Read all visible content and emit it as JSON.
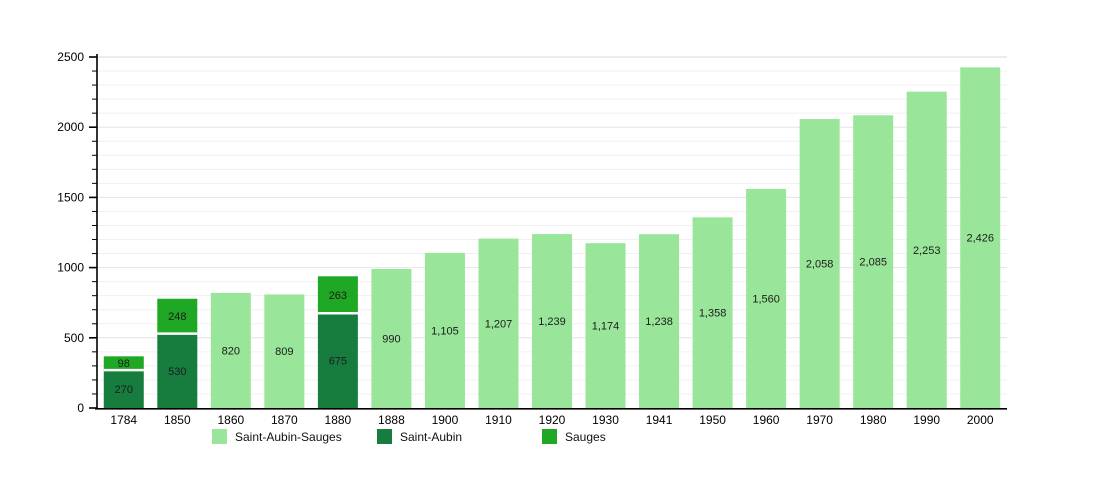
{
  "chart_data": {
    "type": "bar",
    "stacked": true,
    "title": "",
    "xlabel": "",
    "ylabel": "",
    "categories": [
      "1784",
      "1850",
      "1860",
      "1870",
      "1880",
      "1888",
      "1900",
      "1910",
      "1920",
      "1930",
      "1941",
      "1950",
      "1960",
      "1970",
      "1980",
      "1990",
      "2000"
    ],
    "series": [
      {
        "name": "Saint-Aubin-Sauges",
        "color": "#99e599",
        "values": [
          null,
          null,
          820,
          809,
          null,
          990,
          1105,
          1207,
          1239,
          1174,
          1238,
          1358,
          1560,
          2058,
          2085,
          2253,
          2426
        ]
      },
      {
        "name": "Saint-Aubin",
        "color": "#177d3f",
        "values": [
          270,
          530,
          null,
          null,
          675,
          null,
          null,
          null,
          null,
          null,
          null,
          null,
          null,
          null,
          null,
          null,
          null
        ]
      },
      {
        "name": "Sauges",
        "color": "#1ea824",
        "values": [
          98,
          248,
          null,
          null,
          263,
          null,
          null,
          null,
          null,
          null,
          null,
          null,
          null,
          null,
          null,
          null,
          null
        ]
      }
    ],
    "ylim": [
      0,
      2500
    ],
    "ytick_step": 500,
    "y_minor_step": 100,
    "ytick_labels": [
      "0",
      "500",
      "1000",
      "1500",
      "2000",
      "2500"
    ],
    "grid": true,
    "legend_position": "bottom",
    "value_labels": true,
    "value_label_format": "comma",
    "colors": {
      "axis": "#000000",
      "grid_minor": "#f0f0f0",
      "grid_major": "#e4e4e4",
      "grid_top": "#d8d8d8",
      "bar_label_text": "#1c1c1c",
      "tick_label_text": "#000000",
      "segment_separator": "#ffffff",
      "background": "#ffffff"
    }
  }
}
